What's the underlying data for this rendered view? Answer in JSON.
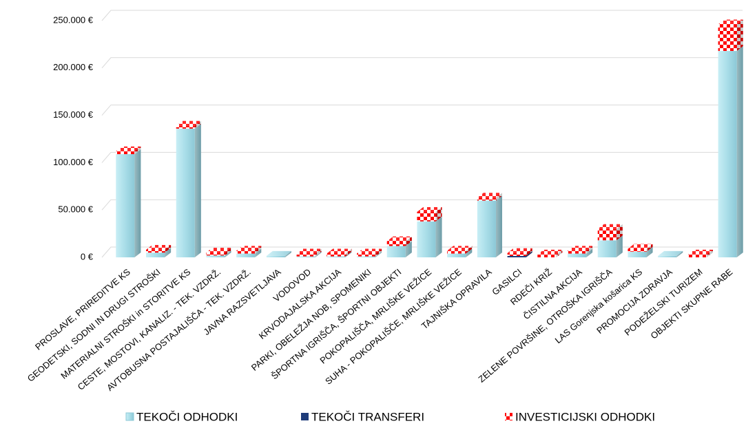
{
  "chart_data": {
    "type": "bar3d_stacked",
    "categories": [
      "PROSLAVE, PRIREDITVE KS",
      "GEODETSKI, SODNI IN DRUGI STROŠKI",
      "MATERIALNI STROŠKI in  STORITVE KS",
      "CESTE, MOSTOVI, KANALIZ. - TEK. VZDRŽ.",
      "AVTOBUSNA POSTAJALIŠČA - TEK. VZDRŽ.",
      "JAVNA RAZSVETLJAVA",
      "VODOVOD",
      "KRVODAJALSKA AKCIJA",
      "PARKI, OBELEŽJA NOB, SPOMENIKI",
      "ŠPORTNA IGRIŠČA, ŠPORTNI OBJEKTI",
      "POKOPALIŠČA, MRLIŠKE VEŽICE",
      "SUHA - POKOPALIŠČE, MRLIŠKE VEŽICE",
      "TAJNIŠKA OPRAVILA",
      "GASILCI",
      "RDEČI KRIŽ",
      "ČISTILNA AKCIJA",
      "ZELENE POVRŠINE, OTROŠKA IGRIŠČA",
      "LAS Gorenjska košarica KS",
      "PROMOCIJA ZDRAVJA",
      "PODEŽELSKI TURIZEM",
      "OBJEKTI SKUPNE RABE"
    ],
    "series": [
      {
        "name": "TEKOČI ODHODKI",
        "color": "#a8dde8",
        "values": [
          109000,
          5000,
          136000,
          2000,
          4000,
          1500,
          1000,
          1000,
          1000,
          12000,
          38000,
          4000,
          60000,
          0,
          0,
          4000,
          18000,
          6000,
          1500,
          0,
          218000
        ]
      },
      {
        "name": "TEKOČI TRANSFERI",
        "color": "#1f3c7a",
        "values": [
          0,
          0,
          0,
          0,
          0,
          0,
          0,
          0,
          0,
          0,
          0,
          0,
          0,
          1500,
          0,
          0,
          0,
          0,
          0,
          0,
          0
        ]
      },
      {
        "name": "INVESTICIJSKI ODHODKI",
        "color": "#ff0000",
        "values": [
          3000,
          3000,
          3000,
          3000,
          3000,
          0,
          3000,
          3000,
          3000,
          5000,
          10000,
          3000,
          3000,
          3000,
          3000,
          3000,
          12000,
          3000,
          0,
          3000,
          28000
        ]
      }
    ],
    "ylim": [
      0,
      250000
    ],
    "yticks": [
      {
        "value": 0,
        "label": "0 €"
      },
      {
        "value": 50000,
        "label": "50.000 €"
      },
      {
        "value": 100000,
        "label": "100.000 €"
      },
      {
        "value": 150000,
        "label": "150.000 €"
      },
      {
        "value": 200000,
        "label": "200.000 €"
      },
      {
        "value": 250000,
        "label": "250.000 €"
      }
    ],
    "grid": true,
    "legend": "bottom"
  }
}
